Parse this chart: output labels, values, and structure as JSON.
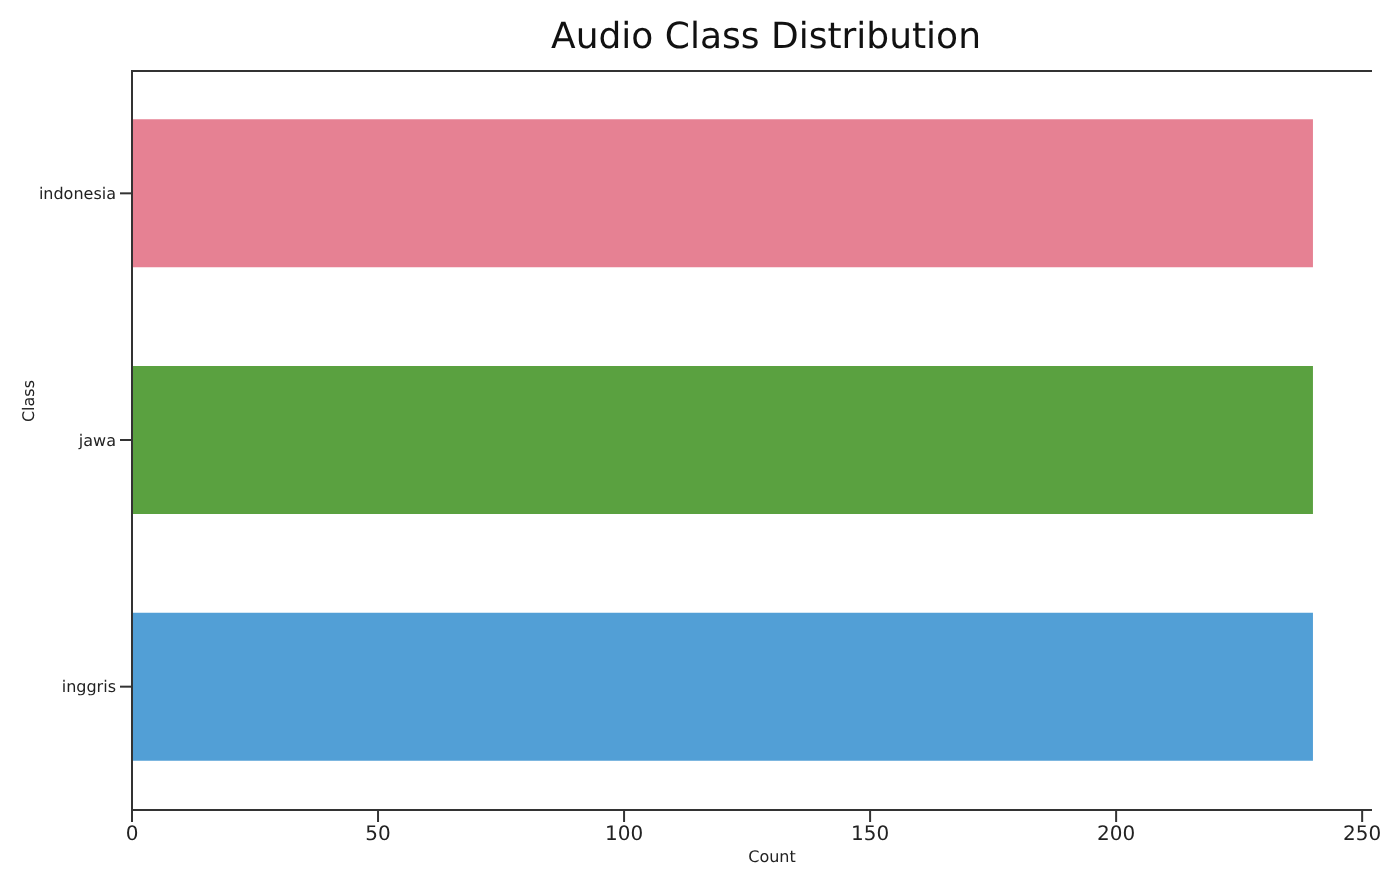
{
  "chart_data": {
    "type": "bar",
    "orientation": "horizontal",
    "title": "Audio Class Distribution",
    "xlabel": "Count",
    "ylabel": "Class",
    "categories": [
      "indonesia",
      "jawa",
      "inggris"
    ],
    "values": [
      240,
      240,
      240
    ],
    "colors": [
      "#e68193",
      "#5aa140",
      "#529fd6"
    ],
    "xlim": [
      0,
      252
    ],
    "xticks": [
      0,
      50,
      100,
      150,
      200,
      250
    ],
    "grid": false,
    "legend": false
  }
}
